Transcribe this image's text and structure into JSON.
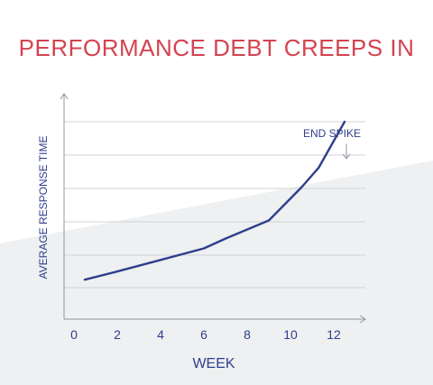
{
  "colors": {
    "title": "#d24450",
    "line": "#2f3f8c",
    "text": "#2f3f8c",
    "grid": "#cfd3d8",
    "axis": "#8f959c",
    "band": "#eef0f1"
  },
  "chart_data": {
    "type": "line",
    "title": "PERFORMANCE DEBT CREEPS IN",
    "xlabel": "WEEK",
    "ylabel": "AVERAGE RESPONSE TIME",
    "x_ticks": [
      "0",
      "2",
      "4",
      "6",
      "8",
      "10",
      "12"
    ],
    "xlim": [
      0,
      13.5
    ],
    "ylim": [
      0,
      6
    ],
    "y_gridlines": [
      1,
      2,
      3,
      4,
      5,
      6
    ],
    "grid": true,
    "legend": "none",
    "series": [
      {
        "x": [
          0.5,
          2,
          4,
          6,
          7,
          9,
          10.5,
          11.3,
          12.5
        ],
        "y": [
          1.2,
          1.45,
          1.8,
          2.15,
          2.45,
          3.0,
          4.0,
          4.6,
          6.0
        ]
      }
    ],
    "annotations": [
      {
        "text": "END SPIKE",
        "x": 12.5,
        "y": 6.0
      }
    ]
  }
}
